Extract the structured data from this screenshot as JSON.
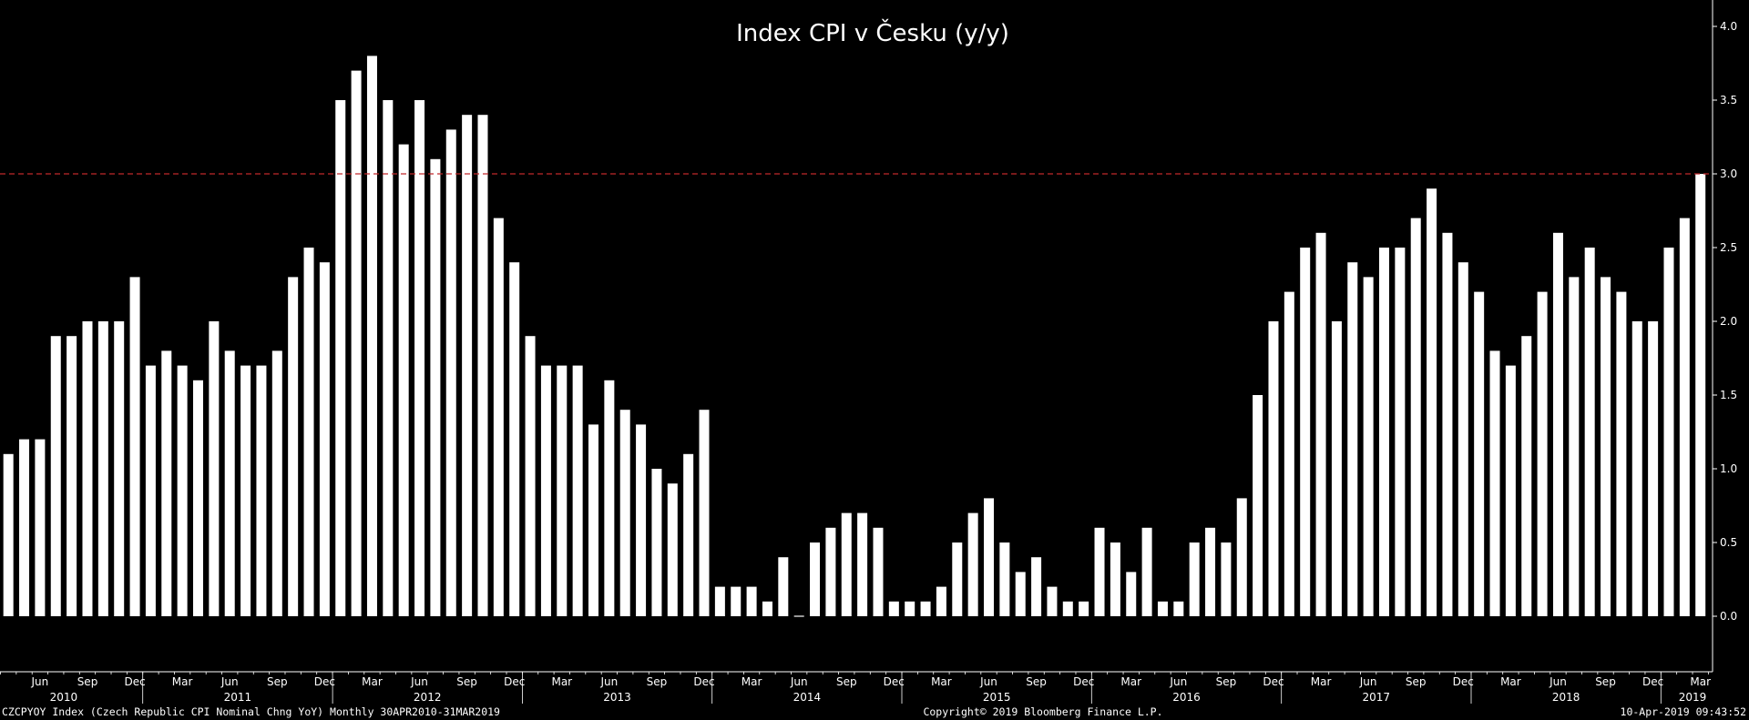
{
  "chart_data": {
    "type": "bar",
    "title": "Index CPI v Česku (y/y)",
    "xlabel": "",
    "ylabel": "",
    "ylim": [
      -0.4,
      4.1
    ],
    "y_ticks": [
      "4.0",
      "3.5",
      "3.0",
      "2.5",
      "2.0",
      "1.5",
      "1.0",
      "0.5",
      "0.0"
    ],
    "reference_line": {
      "value": 3.0,
      "color": "#c0282b",
      "style": "dashed"
    },
    "bar_color": "#ffffff",
    "background": "#000000",
    "grid": false,
    "start_month": "Apr 2010",
    "end_month": "Mar 2019",
    "values": [
      1.1,
      1.2,
      1.2,
      1.9,
      1.9,
      2.0,
      2.0,
      2.0,
      2.3,
      1.7,
      1.8,
      1.7,
      1.6,
      2.0,
      1.8,
      1.7,
      1.7,
      1.8,
      2.3,
      2.5,
      2.4,
      3.5,
      3.7,
      3.8,
      3.5,
      3.2,
      3.5,
      3.1,
      3.3,
      3.4,
      3.4,
      2.7,
      2.4,
      1.9,
      1.7,
      1.7,
      1.7,
      1.3,
      1.6,
      1.4,
      1.3,
      1.0,
      0.9,
      1.1,
      1.4,
      0.2,
      0.2,
      0.2,
      0.1,
      0.4,
      0.0,
      0.5,
      0.6,
      0.7,
      0.7,
      0.6,
      0.1,
      0.1,
      0.1,
      0.2,
      0.5,
      0.7,
      0.8,
      0.5,
      0.3,
      0.4,
      0.2,
      0.1,
      0.1,
      0.6,
      0.5,
      0.3,
      0.6,
      0.1,
      0.1,
      0.5,
      0.6,
      0.5,
      0.8,
      1.5,
      2.0,
      2.2,
      2.5,
      2.6,
      2.0,
      2.4,
      2.3,
      2.5,
      2.5,
      2.7,
      2.9,
      2.6,
      2.4,
      2.2,
      1.8,
      1.7,
      1.9,
      2.2,
      2.6,
      2.3,
      2.5,
      2.3,
      2.2,
      2.0,
      2.0,
      2.5,
      2.7,
      3.0
    ],
    "x_month_labels": [
      {
        "label": "Jun",
        "index": 2
      },
      {
        "label": "Sep",
        "index": 5
      },
      {
        "label": "Dec",
        "index": 8
      },
      {
        "label": "Mar",
        "index": 11
      },
      {
        "label": "Jun",
        "index": 14
      },
      {
        "label": "Sep",
        "index": 17
      },
      {
        "label": "Dec",
        "index": 20
      },
      {
        "label": "Mar",
        "index": 23
      },
      {
        "label": "Jun",
        "index": 26
      },
      {
        "label": "Sep",
        "index": 29
      },
      {
        "label": "Dec",
        "index": 32
      },
      {
        "label": "Mar",
        "index": 35
      },
      {
        "label": "Jun",
        "index": 38
      },
      {
        "label": "Sep",
        "index": 41
      },
      {
        "label": "Dec",
        "index": 44
      },
      {
        "label": "Mar",
        "index": 47
      },
      {
        "label": "Jun",
        "index": 50
      },
      {
        "label": "Sep",
        "index": 53
      },
      {
        "label": "Dec",
        "index": 56
      },
      {
        "label": "Mar",
        "index": 59
      },
      {
        "label": "Jun",
        "index": 62
      },
      {
        "label": "Sep",
        "index": 65
      },
      {
        "label": "Dec",
        "index": 68
      },
      {
        "label": "Mar",
        "index": 71
      },
      {
        "label": "Jun",
        "index": 74
      },
      {
        "label": "Sep",
        "index": 77
      },
      {
        "label": "Dec",
        "index": 80
      },
      {
        "label": "Mar",
        "index": 83
      },
      {
        "label": "Jun",
        "index": 86
      },
      {
        "label": "Sep",
        "index": 89
      },
      {
        "label": "Dec",
        "index": 92
      },
      {
        "label": "Mar",
        "index": 95
      },
      {
        "label": "Jun",
        "index": 98
      },
      {
        "label": "Sep",
        "index": 101
      },
      {
        "label": "Dec",
        "index": 104
      },
      {
        "label": "Mar",
        "index": 107
      }
    ],
    "x_year_labels": [
      {
        "label": "2010",
        "index": 3.5
      },
      {
        "label": "2011",
        "index": 14.5
      },
      {
        "label": "2012",
        "index": 26.5
      },
      {
        "label": "2013",
        "index": 38.5
      },
      {
        "label": "2014",
        "index": 50.5
      },
      {
        "label": "2015",
        "index": 62.5
      },
      {
        "label": "2016",
        "index": 74.5
      },
      {
        "label": "2017",
        "index": 86.5
      },
      {
        "label": "2018",
        "index": 98.5
      },
      {
        "label": "2019",
        "index": 106.5
      }
    ],
    "year_boundaries": [
      8.5,
      20.5,
      32.5,
      44.5,
      56.5,
      68.5,
      80.5,
      92.5,
      104.5
    ]
  },
  "footer": {
    "left": "CZCPYOY Index (Czech Republic CPI Nominal Chng YoY)  Monthly 30APR2010-31MAR2019",
    "center": "Copyright© 2019 Bloomberg Finance L.P.",
    "right": "10-Apr-2019 09:43:52"
  }
}
